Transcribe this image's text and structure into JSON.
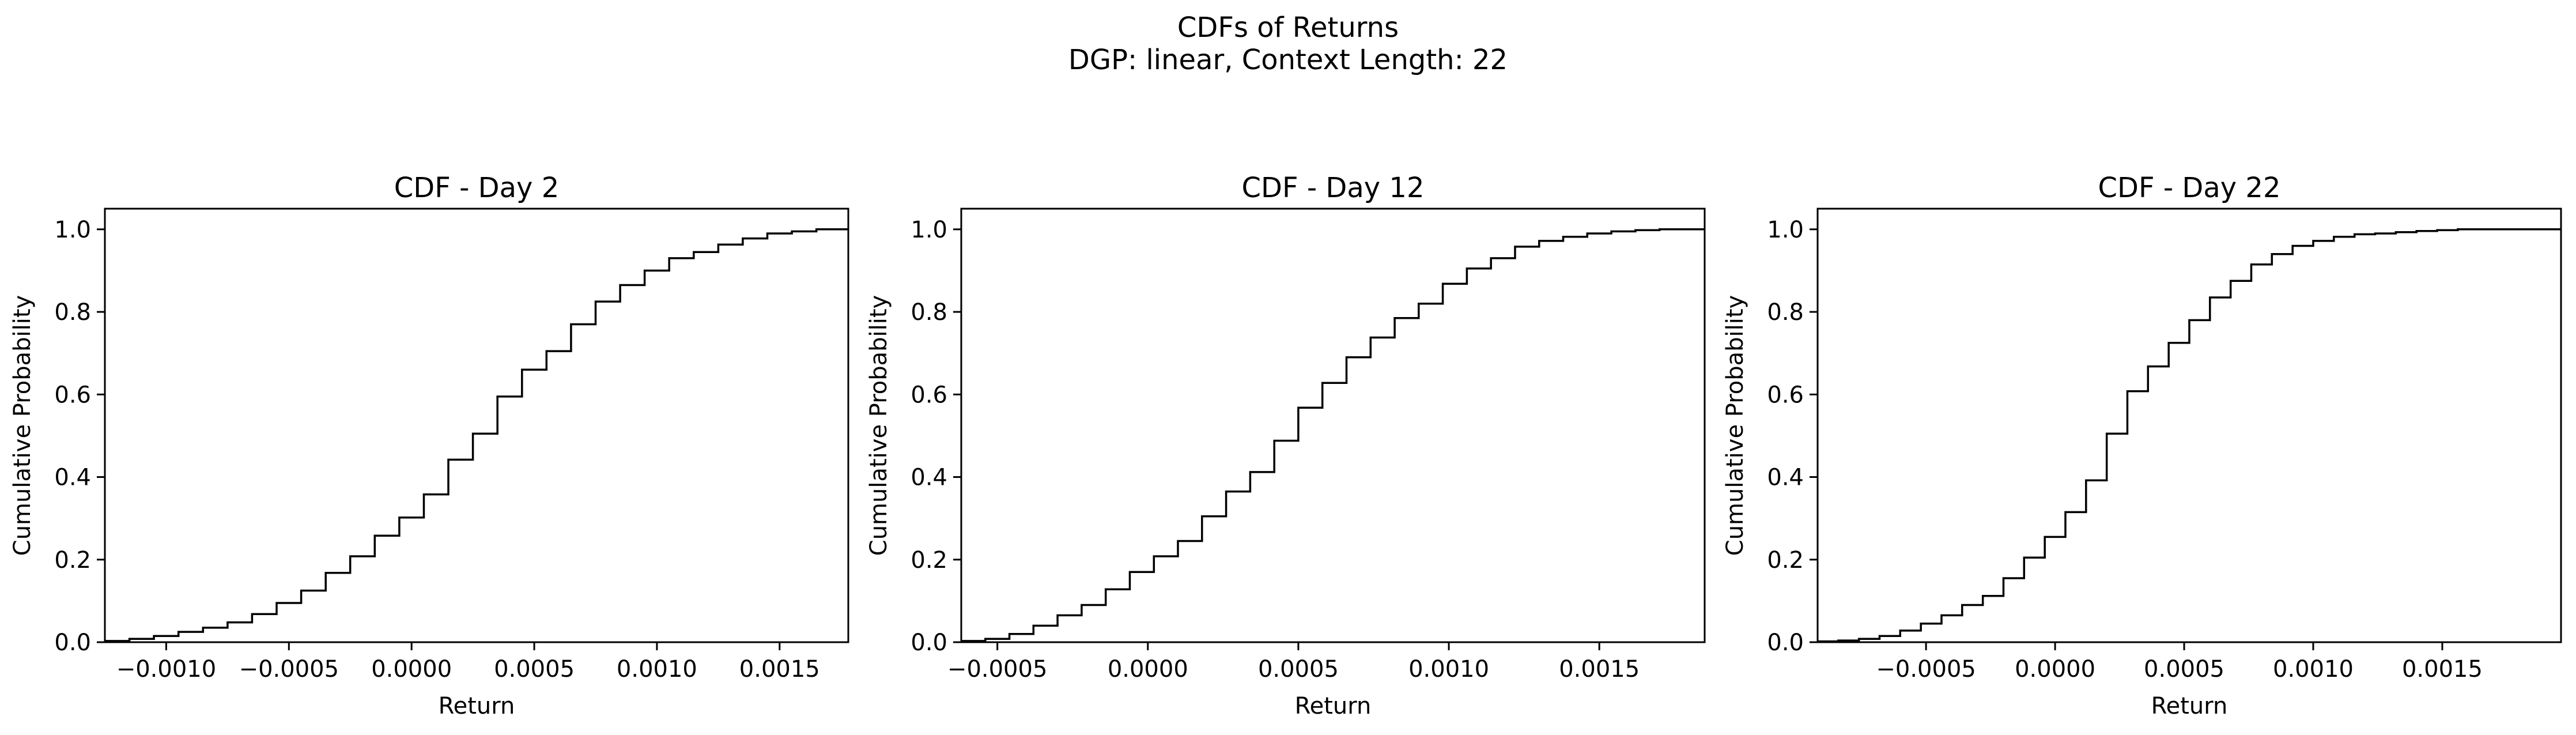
{
  "suptitle": {
    "line1": "CDFs of Returns",
    "line2": "DGP: linear, Context Length: 22"
  },
  "chart_data": [
    {
      "type": "line",
      "step": "post",
      "title": "CDF - Day 2",
      "xlabel": "Return",
      "ylabel": "Cumulative Probability",
      "xlim": [
        -0.00125,
        0.00178
      ],
      "ylim": [
        0.0,
        1.05
      ],
      "xticks": [
        -0.001,
        -0.0005,
        0.0,
        0.0005,
        0.001,
        0.0015
      ],
      "xtick_labels": [
        "−0.0010",
        "−0.0005",
        "0.0000",
        "0.0005",
        "0.0010",
        "0.0015"
      ],
      "yticks": [
        0.0,
        0.2,
        0.4,
        0.6,
        0.8,
        1.0
      ],
      "ytick_labels": [
        "0.0",
        "0.2",
        "0.4",
        "0.6",
        "0.8",
        "1.0"
      ],
      "grid": false,
      "color": "#000000",
      "series": [
        {
          "x": [
            -0.00125,
            -0.00115,
            -0.00105,
            -0.00095,
            -0.00085,
            -0.00075,
            -0.00065,
            -0.00055,
            -0.00045,
            -0.00035,
            -0.00025,
            -0.00015,
            -5e-05,
            5e-05,
            0.00015,
            0.00025,
            0.00035,
            0.00045,
            0.00055,
            0.00065,
            0.00075,
            0.00085,
            0.00095,
            0.00105,
            0.00115,
            0.00125,
            0.00135,
            0.00145,
            0.00155,
            0.00165,
            0.00178
          ],
          "y": [
            0.003,
            0.008,
            0.015,
            0.025,
            0.035,
            0.048,
            0.068,
            0.095,
            0.125,
            0.168,
            0.208,
            0.258,
            0.302,
            0.358,
            0.442,
            0.505,
            0.595,
            0.66,
            0.705,
            0.77,
            0.825,
            0.865,
            0.9,
            0.93,
            0.945,
            0.963,
            0.978,
            0.99,
            0.995,
            1.0,
            1.0
          ]
        }
      ]
    },
    {
      "type": "line",
      "step": "post",
      "title": "CDF - Day 12",
      "xlabel": "Return",
      "ylabel": "Cumulative Probability",
      "xlim": [
        -0.00062,
        0.00185
      ],
      "ylim": [
        0.0,
        1.05
      ],
      "xticks": [
        -0.0005,
        0.0,
        0.0005,
        0.001,
        0.0015
      ],
      "xtick_labels": [
        "−0.0005",
        "0.0000",
        "0.0005",
        "0.0010",
        "0.0015"
      ],
      "yticks": [
        0.0,
        0.2,
        0.4,
        0.6,
        0.8,
        1.0
      ],
      "ytick_labels": [
        "0.0",
        "0.2",
        "0.4",
        "0.6",
        "0.8",
        "1.0"
      ],
      "grid": false,
      "color": "#000000",
      "series": [
        {
          "x": [
            -0.00062,
            -0.00054,
            -0.00046,
            -0.00038,
            -0.0003,
            -0.00022,
            -0.00014,
            -6e-05,
            2e-05,
            0.0001,
            0.00018,
            0.00026,
            0.00034,
            0.00042,
            0.0005,
            0.00058,
            0.00066,
            0.00074,
            0.00082,
            0.0009,
            0.00098,
            0.00106,
            0.00114,
            0.00122,
            0.0013,
            0.00138,
            0.00146,
            0.00154,
            0.00162,
            0.0017,
            0.00185
          ],
          "y": [
            0.003,
            0.008,
            0.02,
            0.04,
            0.065,
            0.09,
            0.128,
            0.17,
            0.208,
            0.245,
            0.305,
            0.365,
            0.412,
            0.488,
            0.568,
            0.628,
            0.69,
            0.738,
            0.785,
            0.82,
            0.868,
            0.905,
            0.93,
            0.958,
            0.972,
            0.982,
            0.99,
            0.995,
            0.998,
            1.0,
            1.0
          ]
        }
      ]
    },
    {
      "type": "line",
      "step": "post",
      "title": "CDF - Day 22",
      "xlabel": "Return",
      "ylabel": "Cumulative Probability",
      "xlim": [
        -0.00092,
        0.00196
      ],
      "ylim": [
        0.0,
        1.05
      ],
      "xticks": [
        -0.0005,
        0.0,
        0.0005,
        0.001,
        0.0015
      ],
      "xtick_labels": [
        "−0.0005",
        "0.0000",
        "0.0005",
        "0.0010",
        "0.0015"
      ],
      "yticks": [
        0.0,
        0.2,
        0.4,
        0.6,
        0.8,
        1.0
      ],
      "ytick_labels": [
        "0.0",
        "0.2",
        "0.4",
        "0.6",
        "0.8",
        "1.0"
      ],
      "grid": false,
      "color": "#000000",
      "series": [
        {
          "x": [
            -0.00092,
            -0.00084,
            -0.00076,
            -0.00068,
            -0.0006,
            -0.00052,
            -0.00044,
            -0.00036,
            -0.00028,
            -0.0002,
            -0.00012,
            -4e-05,
            4e-05,
            0.00012,
            0.0002,
            0.00028,
            0.00036,
            0.00044,
            0.00052,
            0.0006,
            0.00068,
            0.00076,
            0.00084,
            0.00092,
            0.001,
            0.00108,
            0.00116,
            0.00124,
            0.00132,
            0.0014,
            0.00148,
            0.00156,
            0.00164,
            0.00172,
            0.0018,
            0.00196
          ],
          "y": [
            0.002,
            0.004,
            0.008,
            0.015,
            0.028,
            0.045,
            0.065,
            0.09,
            0.112,
            0.155,
            0.205,
            0.255,
            0.315,
            0.392,
            0.505,
            0.608,
            0.668,
            0.725,
            0.78,
            0.835,
            0.875,
            0.915,
            0.94,
            0.96,
            0.972,
            0.982,
            0.988,
            0.99,
            0.993,
            0.996,
            0.998,
            1.0,
            1.0,
            1.0,
            1.0,
            1.0
          ]
        }
      ]
    }
  ]
}
